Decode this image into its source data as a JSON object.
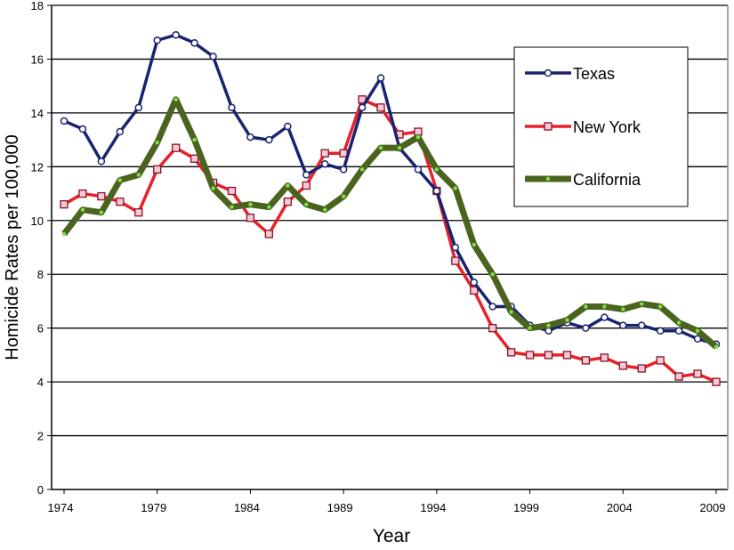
{
  "chart_data": {
    "type": "line",
    "title": "",
    "xlabel": "Year",
    "ylabel": "Homicide Rates per 100,000",
    "xlim": [
      1974,
      2009
    ],
    "ylim": [
      0,
      18
    ],
    "x_ticks": [
      "1974",
      "1979",
      "1984",
      "1989",
      "1994",
      "1999",
      "2004",
      "2009"
    ],
    "y_ticks": [
      "0",
      "2",
      "4",
      "6",
      "8",
      "10",
      "12",
      "14",
      "16",
      "18"
    ],
    "grid": "horizontal",
    "legend_position": "top-right",
    "x": [
      1974,
      1975,
      1976,
      1977,
      1978,
      1979,
      1980,
      1981,
      1982,
      1983,
      1984,
      1985,
      1986,
      1987,
      1988,
      1989,
      1990,
      1991,
      1992,
      1993,
      1994,
      1995,
      1996,
      1997,
      1998,
      1999,
      2000,
      2001,
      2002,
      2003,
      2004,
      2005,
      2006,
      2007,
      2008,
      2009
    ],
    "series": [
      {
        "name": "Texas",
        "color": "#1a2370",
        "marker": "diamond",
        "values": [
          13.7,
          13.4,
          12.2,
          13.3,
          14.2,
          16.7,
          16.9,
          16.6,
          16.1,
          14.2,
          13.1,
          13.0,
          13.5,
          11.7,
          12.1,
          11.9,
          14.2,
          15.3,
          12.7,
          11.9,
          11.1,
          9.0,
          7.7,
          6.8,
          6.8,
          6.1,
          5.9,
          6.2,
          6.0,
          6.4,
          6.1,
          6.1,
          5.9,
          5.9,
          5.6,
          5.4
        ]
      },
      {
        "name": "New York",
        "color": "#e8202a",
        "marker": "square",
        "values": [
          10.6,
          11.0,
          10.9,
          10.7,
          10.3,
          11.9,
          12.7,
          12.3,
          11.4,
          11.1,
          10.1,
          9.5,
          10.7,
          11.3,
          12.5,
          12.5,
          14.5,
          14.2,
          13.2,
          13.3,
          11.1,
          8.5,
          7.4,
          6.0,
          5.1,
          5.0,
          5.0,
          5.0,
          4.8,
          4.9,
          4.6,
          4.5,
          4.8,
          4.2,
          4.3,
          4.0
        ]
      },
      {
        "name": "California",
        "color": "#4a6420",
        "marker": "triangle",
        "values": [
          9.5,
          10.4,
          10.3,
          11.5,
          11.7,
          12.9,
          14.5,
          13.0,
          11.2,
          10.5,
          10.6,
          10.5,
          11.3,
          10.6,
          10.4,
          10.9,
          11.9,
          12.7,
          12.7,
          13.1,
          11.9,
          11.2,
          9.1,
          8.0,
          6.6,
          6.0,
          6.1,
          6.3,
          6.8,
          6.8,
          6.7,
          6.9,
          6.8,
          6.2,
          5.9,
          5.3
        ]
      }
    ]
  }
}
